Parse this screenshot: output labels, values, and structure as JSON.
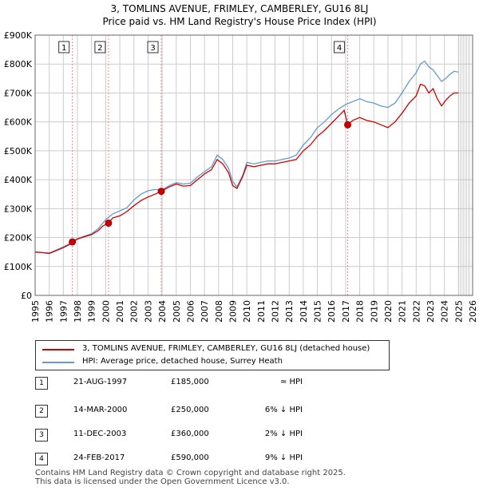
{
  "chart_data": {
    "type": "line",
    "title": "3, TOMLINS AVENUE, FRIMLEY, CAMBERLEY, GU16 8LJ",
    "subtitle": "Price paid vs. HM Land Registry's House Price Index (HPI)",
    "xlabel": "",
    "ylabel": "",
    "xlim": [
      1995,
      2026
    ],
    "ylim": [
      0,
      900000
    ],
    "grid": true,
    "x_ticks": [
      "1995",
      "1996",
      "1997",
      "1998",
      "1999",
      "2000",
      "2001",
      "2002",
      "2003",
      "2004",
      "2005",
      "2006",
      "2007",
      "2008",
      "2009",
      "2010",
      "2011",
      "2012",
      "2013",
      "2014",
      "2015",
      "2016",
      "2017",
      "2018",
      "2019",
      "2020",
      "2021",
      "2022",
      "2023",
      "2024",
      "2025",
      "2026"
    ],
    "y_ticks": [
      "£0",
      "£100K",
      "£200K",
      "£300K",
      "£400K",
      "£500K",
      "£600K",
      "£700K",
      "£800K",
      "£900K"
    ],
    "y_tick_values": [
      0,
      100000,
      200000,
      300000,
      400000,
      500000,
      600000,
      700000,
      800000,
      900000
    ],
    "series": [
      {
        "name": "3, TOMLINS AVENUE, FRIMLEY, CAMBERLEY, GU16 8LJ (detached house)",
        "color": "#cc0000",
        "x": [
          1995.0,
          1995.5,
          1996.0,
          1996.5,
          1997.0,
          1997.4,
          1997.64,
          1998.0,
          1998.5,
          1999.0,
          1999.5,
          1999.8,
          2000.2,
          2000.5,
          2001.0,
          2001.5,
          2002.0,
          2002.5,
          2003.0,
          2003.5,
          2003.94,
          2004.5,
          2005.0,
          2005.5,
          2006.0,
          2006.5,
          2007.0,
          2007.5,
          2007.9,
          2008.3,
          2008.7,
          2009.0,
          2009.3,
          2009.7,
          2010.0,
          2010.5,
          2011.0,
          2011.5,
          2012.0,
          2012.5,
          2013.0,
          2013.5,
          2014.0,
          2014.5,
          2015.0,
          2015.5,
          2016.0,
          2016.5,
          2016.9,
          2017.15,
          2017.5,
          2018.0,
          2018.5,
          2019.0,
          2019.5,
          2020.0,
          2020.5,
          2021.0,
          2021.5,
          2022.0,
          2022.3,
          2022.6,
          2022.9,
          2023.2,
          2023.5,
          2023.8,
          2024.1,
          2024.4,
          2024.7,
          2025.0
        ],
        "values": [
          150000,
          148000,
          145000,
          155000,
          165000,
          175000,
          185000,
          195000,
          203000,
          210000,
          225000,
          240000,
          250000,
          268000,
          275000,
          290000,
          310000,
          328000,
          340000,
          350000,
          360000,
          375000,
          385000,
          378000,
          380000,
          400000,
          420000,
          435000,
          470000,
          455000,
          425000,
          380000,
          370000,
          410000,
          450000,
          445000,
          450000,
          455000,
          455000,
          460000,
          465000,
          470000,
          500000,
          520000,
          550000,
          570000,
          595000,
          620000,
          640000,
          590000,
          605000,
          615000,
          605000,
          600000,
          590000,
          580000,
          600000,
          630000,
          665000,
          690000,
          730000,
          725000,
          700000,
          715000,
          680000,
          655000,
          675000,
          690000,
          700000,
          700000
        ]
      },
      {
        "name": "HPI: Average price, detached house, Surrey Heath",
        "color": "#6699cc",
        "x": [
          1995.0,
          1995.5,
          1996.0,
          1996.5,
          1997.0,
          1997.64,
          1998.0,
          1998.5,
          1999.0,
          1999.5,
          2000.0,
          2000.5,
          2001.0,
          2001.5,
          2002.0,
          2002.5,
          2003.0,
          2003.5,
          2004.0,
          2004.5,
          2005.0,
          2005.5,
          2006.0,
          2006.5,
          2007.0,
          2007.5,
          2007.9,
          2008.3,
          2008.7,
          2009.0,
          2009.3,
          2009.7,
          2010.0,
          2010.5,
          2011.0,
          2011.5,
          2012.0,
          2012.5,
          2013.0,
          2013.5,
          2014.0,
          2014.5,
          2015.0,
          2015.5,
          2016.0,
          2016.5,
          2017.0,
          2017.5,
          2018.0,
          2018.5,
          2019.0,
          2019.5,
          2020.0,
          2020.5,
          2021.0,
          2021.5,
          2022.0,
          2022.3,
          2022.6,
          2022.9,
          2023.2,
          2023.5,
          2023.8,
          2024.1,
          2024.4,
          2024.7,
          2025.0
        ],
        "values": [
          150000,
          148000,
          147000,
          157000,
          168000,
          184000,
          196000,
          205000,
          213000,
          232000,
          262000,
          282000,
          292000,
          303000,
          330000,
          350000,
          362000,
          366000,
          365000,
          380000,
          390000,
          385000,
          388000,
          410000,
          428000,
          445000,
          485000,
          470000,
          440000,
          395000,
          375000,
          415000,
          460000,
          455000,
          460000,
          465000,
          465000,
          470000,
          475000,
          485000,
          520000,
          545000,
          580000,
          600000,
          625000,
          645000,
          660000,
          670000,
          680000,
          670000,
          665000,
          655000,
          650000,
          665000,
          700000,
          740000,
          770000,
          800000,
          810000,
          790000,
          780000,
          760000,
          740000,
          750000,
          765000,
          775000,
          772000
        ]
      }
    ],
    "sales": [
      {
        "label": "1",
        "x": 1997.64,
        "value": 185000
      },
      {
        "label": "2",
        "x": 2000.2,
        "value": 250000
      },
      {
        "label": "3",
        "x": 2003.94,
        "value": 360000
      },
      {
        "label": "4",
        "x": 2017.15,
        "value": 590000
      }
    ]
  },
  "legend": {
    "items": [
      {
        "label": "3, TOMLINS AVENUE, FRIMLEY, CAMBERLEY, GU16 8LJ (detached house)",
        "color": "#cc0000"
      },
      {
        "label": "HPI: Average price, detached house, Surrey Heath",
        "color": "#6699cc"
      }
    ]
  },
  "table": {
    "rows": [
      {
        "num": "1",
        "date": "21-AUG-1997",
        "price": "£185,000",
        "hpi": "≈ HPI"
      },
      {
        "num": "2",
        "date": "14-MAR-2000",
        "price": "£250,000",
        "hpi": "6% ↓ HPI"
      },
      {
        "num": "3",
        "date": "11-DEC-2003",
        "price": "£360,000",
        "hpi": "2% ↓ HPI"
      },
      {
        "num": "4",
        "date": "24-FEB-2017",
        "price": "£590,000",
        "hpi": "9% ↓ HPI"
      }
    ]
  },
  "footer": {
    "line1": "Contains HM Land Registry data © Crown copyright and database right 2025.",
    "line2": "This data is licensed under the Open Government Licence v3.0."
  }
}
